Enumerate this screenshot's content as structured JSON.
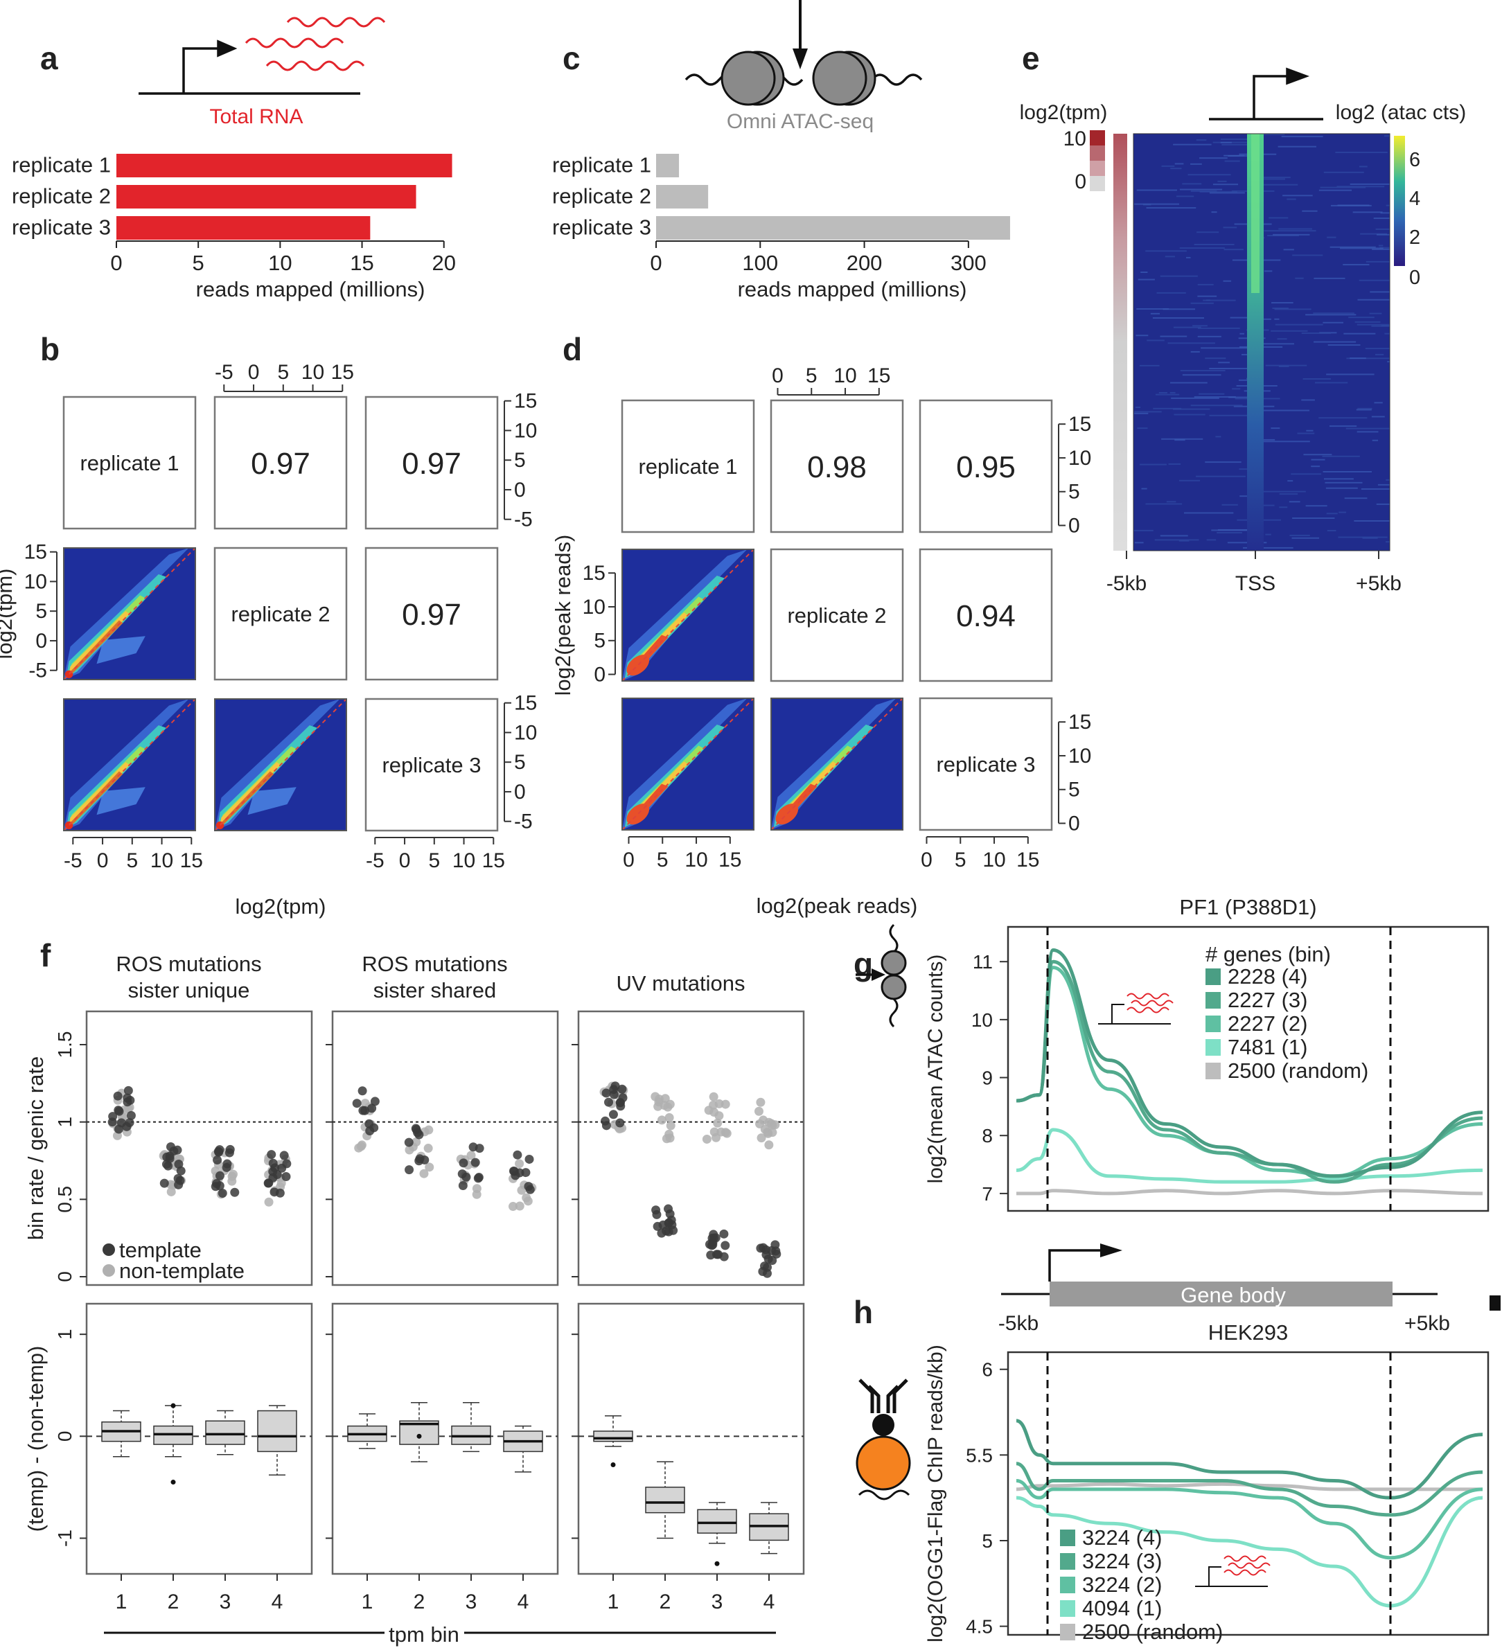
{
  "panels": {
    "a": "a",
    "b": "b",
    "c": "c",
    "d": "d",
    "e": "e",
    "f": "f",
    "g": "g",
    "h": "h"
  },
  "colors": {
    "rna_red": "#e2242b",
    "atac_gray": "#bcbcbc",
    "teal_dark": "#3f8f78",
    "teal_4": "#4a9e84",
    "teal_3": "#52a98c",
    "teal_2": "#5fc0a2",
    "teal_1": "#7ee0c6",
    "random_gray": "#bdbdbd",
    "orange": "#f5821f",
    "heat_bg": "#202c8c"
  },
  "chart_data": [
    {
      "id": "a",
      "type": "bar",
      "title": "Total RNA",
      "orientation": "horizontal",
      "categories": [
        "replicate 1",
        "replicate 2",
        "replicate 3"
      ],
      "values": [
        20.5,
        18.3,
        15.5
      ],
      "xlabel": "reads mapped (millions)",
      "xlim": [
        0,
        22
      ],
      "xticks": [
        0,
        5,
        10,
        15,
        20
      ]
    },
    {
      "id": "c",
      "type": "bar",
      "title": "Omni ATAC-seq",
      "orientation": "horizontal",
      "categories": [
        "replicate 1",
        "replicate 2",
        "replicate 3"
      ],
      "values": [
        22,
        50,
        340
      ],
      "xlabel": "reads mapped (millions)",
      "xlim": [
        0,
        350
      ],
      "xticks": [
        0,
        100,
        200,
        300
      ]
    },
    {
      "id": "b",
      "type": "heatmap",
      "labels": [
        "replicate 1",
        "replicate 2",
        "replicate 3"
      ],
      "correlations": {
        "r1_r2": "0.97",
        "r1_r3": "0.97",
        "r2_r3": "0.97"
      },
      "xlabel": "log2(tpm)",
      "ylabel": "log2(tpm)",
      "ticks": [
        "-5",
        "0",
        "5",
        "10",
        "15"
      ]
    },
    {
      "id": "d",
      "type": "heatmap",
      "labels": [
        "replicate 1",
        "replicate 2",
        "replicate 3"
      ],
      "correlations": {
        "r1_r2": "0.98",
        "r1_r3": "0.95",
        "r2_r3": "0.94"
      },
      "xlabel": "log2(peak reads)",
      "ylabel": "log2(peak reads)",
      "ticks": [
        "0",
        "5",
        "10",
        "15"
      ]
    },
    {
      "id": "e",
      "type": "heatmap",
      "left_legend": "log2(tpm)",
      "left_ticks": [
        "10",
        "0"
      ],
      "right_legend": "log2 (atac cts)",
      "colorbar_ticks": [
        "6",
        "4",
        "2",
        "0"
      ],
      "xticks": [
        "-5kb",
        "TSS",
        "+5kb"
      ]
    },
    {
      "id": "f",
      "type": "scatter",
      "titles": [
        [
          "ROS mutations",
          "sister unique"
        ],
        [
          "ROS mutations",
          "sister shared"
        ],
        [
          "UV mutations"
        ]
      ],
      "top": {
        "ylabel": "bin rate / genic rate",
        "yticks": [
          "0",
          "0.5",
          "1",
          "1.5"
        ],
        "ylim": [
          0,
          1.5
        ],
        "reference": 1,
        "groups": {
          "template": [
            [
              1.1,
              0.72,
              0.68,
              0.66
            ],
            [
              1.08,
              0.82,
              0.7,
              0.65
            ],
            [
              1.1,
              0.35,
              0.18,
              0.12
            ]
          ],
          "non-template": [
            [
              1.05,
              0.68,
              0.66,
              0.62
            ],
            [
              0.98,
              0.8,
              0.68,
              0.6
            ],
            [
              1.1,
              1.02,
              1.02,
              0.98
            ]
          ]
        }
      },
      "bottom": {
        "ylabel": "(temp) - (non-temp)",
        "yticks": [
          "-1",
          "0",
          "1"
        ],
        "ylim": [
          -1.35,
          1.3
        ],
        "type": "box",
        "boxes": [
          [
            [
              -0.05,
              0.05,
              0.14,
              0.25,
              -0.2
            ],
            [
              -0.08,
              0.02,
              0.1,
              0.3,
              -0.2
            ],
            [
              -0.08,
              0.02,
              0.15,
              0.25,
              -0.18
            ],
            [
              -0.15,
              0.0,
              0.25,
              0.3,
              -0.38
            ]
          ],
          [
            [
              -0.05,
              0.02,
              0.1,
              0.22,
              -0.12
            ],
            [
              -0.08,
              0.12,
              0.15,
              0.33,
              -0.25
            ],
            [
              -0.08,
              0.0,
              0.1,
              0.33,
              -0.15
            ],
            [
              -0.15,
              -0.05,
              0.05,
              0.1,
              -0.35
            ]
          ],
          [
            [
              -0.05,
              -0.02,
              0.05,
              0.2,
              -0.1
            ],
            [
              -0.75,
              -0.65,
              -0.5,
              -0.25,
              -1.0
            ],
            [
              -0.95,
              -0.85,
              -0.72,
              -0.65,
              -1.05
            ],
            [
              -1.02,
              -0.88,
              -0.76,
              -0.65,
              -1.15
            ]
          ]
        ]
      },
      "xlabel": "tpm bin",
      "xticks": [
        "1",
        "2",
        "3",
        "4"
      ],
      "legend": [
        "template",
        "non-template"
      ]
    },
    {
      "id": "g",
      "type": "line",
      "title": "PF1 (P388D1)",
      "ylabel": "log2(mean ATAC counts)",
      "yticks": [
        "7",
        "8",
        "9",
        "10",
        "11"
      ],
      "ylim": [
        6.7,
        11.6
      ],
      "legend_title": "# genes (bin)",
      "series": [
        {
          "name": "2228 (4)",
          "values": [
            8.6,
            8.7,
            11.2,
            9.3,
            8.2,
            7.8,
            7.5,
            7.3,
            7.45,
            8.4
          ]
        },
        {
          "name": "2227 (3)",
          "values": [
            8.6,
            8.7,
            11.0,
            9.1,
            8.1,
            7.7,
            7.5,
            7.2,
            7.5,
            8.3
          ]
        },
        {
          "name": "2227 (2)",
          "values": [
            8.6,
            8.7,
            10.9,
            8.8,
            8.0,
            7.7,
            7.4,
            7.3,
            7.6,
            8.2
          ]
        },
        {
          "name": "7481 (1)",
          "values": [
            7.4,
            7.6,
            8.1,
            7.3,
            7.25,
            7.2,
            7.2,
            7.25,
            7.3,
            7.4
          ]
        },
        {
          "name": "2500 (random)",
          "values": [
            7.0,
            7.0,
            7.05,
            7.0,
            7.05,
            7.0,
            7.05,
            7.0,
            7.05,
            7.0
          ]
        }
      ]
    },
    {
      "id": "gene",
      "type": "diagram",
      "label": "Gene body",
      "left": "-5kb",
      "right": "+5kb"
    },
    {
      "id": "h",
      "type": "line",
      "title": "HEK293",
      "ylabel": "log2(OGG1-Flag ChIP reads/kb)",
      "yticks": [
        "4.5",
        "5",
        "5.5",
        "6"
      ],
      "ylim": [
        4.45,
        6.1
      ],
      "series": [
        {
          "name": "3224 (4)",
          "values": [
            5.7,
            5.5,
            5.45,
            5.45,
            5.45,
            5.4,
            5.4,
            5.35,
            5.25,
            5.62
          ]
        },
        {
          "name": "3224 (3)",
          "values": [
            5.45,
            5.3,
            5.35,
            5.35,
            5.35,
            5.35,
            5.3,
            5.2,
            5.15,
            5.4
          ]
        },
        {
          "name": "3224 (2)",
          "values": [
            5.35,
            5.25,
            5.3,
            5.3,
            5.3,
            5.28,
            5.25,
            5.1,
            4.9,
            5.3
          ]
        },
        {
          "name": "4094 (1)",
          "values": [
            5.25,
            5.2,
            5.15,
            5.1,
            5.05,
            5.0,
            4.95,
            4.85,
            4.62,
            5.25
          ]
        },
        {
          "name": "2500 (random)",
          "values": [
            5.3,
            5.32,
            5.32,
            5.33,
            5.32,
            5.33,
            5.32,
            5.3,
            5.3,
            5.3
          ]
        }
      ]
    }
  ]
}
